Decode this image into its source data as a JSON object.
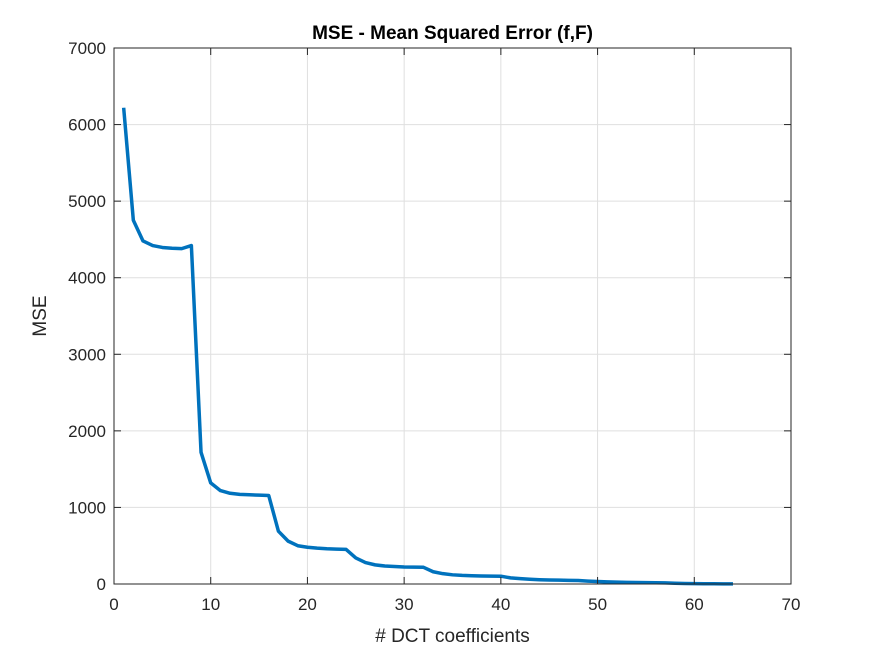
{
  "chart_data": {
    "type": "line",
    "title": "MSE - Mean Squared Error (f,F)",
    "xlabel": "# DCT coefficients",
    "ylabel": "MSE",
    "xlim": [
      0,
      70
    ],
    "ylim": [
      0,
      7000
    ],
    "xticks": [
      0,
      10,
      20,
      30,
      40,
      50,
      60,
      70
    ],
    "yticks": [
      0,
      1000,
      2000,
      3000,
      4000,
      5000,
      6000,
      7000
    ],
    "grid": true,
    "series": [
      {
        "color": "#0072BD",
        "x": [
          1,
          2,
          3,
          4,
          5,
          6,
          7,
          8,
          9,
          10,
          11,
          12,
          13,
          14,
          15,
          16,
          17,
          18,
          19,
          20,
          21,
          22,
          23,
          24,
          25,
          26,
          27,
          28,
          29,
          30,
          31,
          32,
          33,
          34,
          35,
          36,
          37,
          38,
          39,
          40,
          41,
          42,
          43,
          44,
          45,
          46,
          47,
          48,
          49,
          50,
          51,
          52,
          53,
          54,
          55,
          56,
          57,
          58,
          59,
          60,
          61,
          62,
          63,
          64
        ],
        "y": [
          6220,
          4750,
          4480,
          4420,
          4395,
          4385,
          4380,
          4420,
          1720,
          1320,
          1220,
          1185,
          1170,
          1165,
          1160,
          1155,
          690,
          560,
          500,
          480,
          468,
          460,
          455,
          452,
          340,
          280,
          250,
          235,
          228,
          222,
          220,
          218,
          160,
          135,
          120,
          112,
          108,
          105,
          103,
          102,
          80,
          70,
          62,
          56,
          52,
          50,
          48,
          46,
          38,
          32,
          28,
          24,
          22,
          20,
          18,
          16,
          14,
          10,
          7,
          5,
          4,
          3,
          2,
          2
        ]
      }
    ]
  }
}
